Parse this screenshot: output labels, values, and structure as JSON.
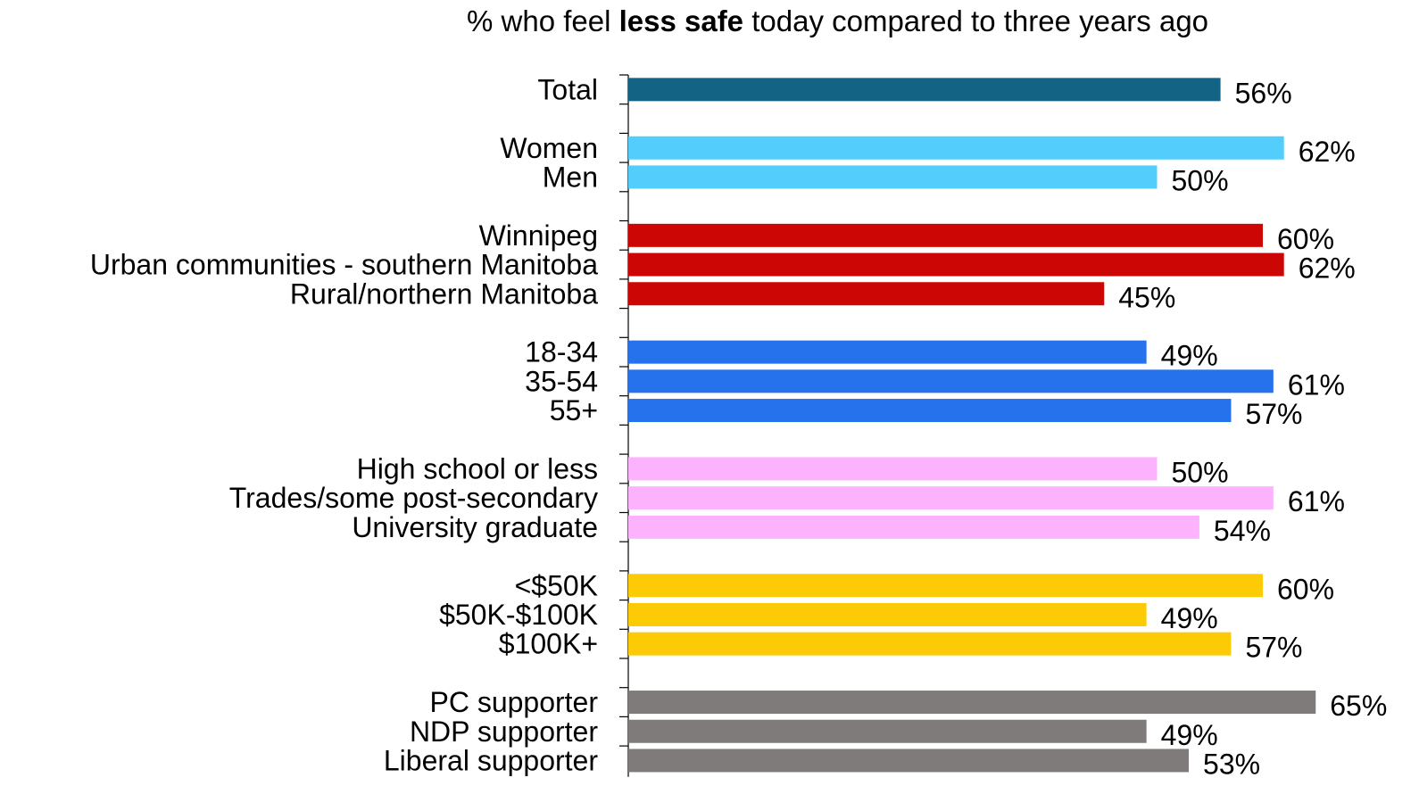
{
  "title": {
    "prefix": "% who feel ",
    "emphasis": "less safe",
    "suffix": " today compared to three years ago"
  },
  "chart_data": {
    "type": "bar",
    "orientation": "horizontal",
    "title": "% who feel less safe today compared to three years ago",
    "value_suffix": "%",
    "xlim": [
      0,
      100
    ],
    "grid": false,
    "legend": "none",
    "groups": [
      {
        "color": "#136384",
        "items": [
          {
            "label": "Total",
            "value": 56
          }
        ]
      },
      {
        "color": "#52CDFC",
        "items": [
          {
            "label": "Women",
            "value": 62
          },
          {
            "label": "Men",
            "value": 50
          }
        ]
      },
      {
        "color": "#CC0605",
        "items": [
          {
            "label": "Winnipeg",
            "value": 60
          },
          {
            "label": "Urban communities - southern Manitoba",
            "value": 62
          },
          {
            "label": "Rural/northern Manitoba",
            "value": 45
          }
        ]
      },
      {
        "color": "#2672EC",
        "items": [
          {
            "label": "18-34",
            "value": 49
          },
          {
            "label": "35-54",
            "value": 61
          },
          {
            "label": "55+",
            "value": 57
          }
        ]
      },
      {
        "color": "#FDB2FE",
        "items": [
          {
            "label": "High school or less",
            "value": 50
          },
          {
            "label": "Trades/some post-secondary",
            "value": 61
          },
          {
            "label": "University graduate",
            "value": 54
          }
        ]
      },
      {
        "color": "#FDCA06",
        "items": [
          {
            "label": "<$50K",
            "value": 60
          },
          {
            "label": "$50K-$100K",
            "value": 49
          },
          {
            "label": "$100K+",
            "value": 57
          }
        ]
      },
      {
        "color": "#7F7B7B",
        "items": [
          {
            "label": "PC supporter",
            "value": 65
          },
          {
            "label": "NDP supporter",
            "value": 49
          },
          {
            "label": "Liberal supporter",
            "value": 53
          }
        ]
      }
    ]
  }
}
